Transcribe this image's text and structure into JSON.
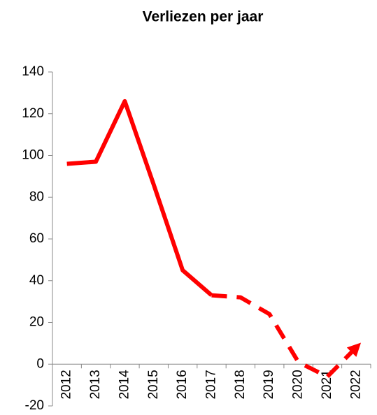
{
  "chart_data": {
    "type": "line",
    "title": "Verliezen per jaar",
    "categories": [
      "2012",
      "2013",
      "2014",
      "2015",
      "2016",
      "2017",
      "2018",
      "2019",
      "2020",
      "2021",
      "2022"
    ],
    "series": [
      {
        "color": "#ff0000",
        "linestyle": "solid",
        "values": [
          96,
          97,
          126,
          86,
          45,
          33,
          null,
          null,
          null,
          null,
          null
        ]
      },
      {
        "color": "#ff0000",
        "linestyle": "dashed",
        "arrow": true,
        "values": [
          null,
          null,
          null,
          null,
          null,
          33,
          32,
          24,
          1,
          -6,
          8
        ]
      }
    ],
    "ylim": [
      -20,
      140
    ],
    "yticks": [
      -20,
      0,
      20,
      40,
      60,
      80,
      100,
      120,
      140
    ],
    "grid": false
  }
}
